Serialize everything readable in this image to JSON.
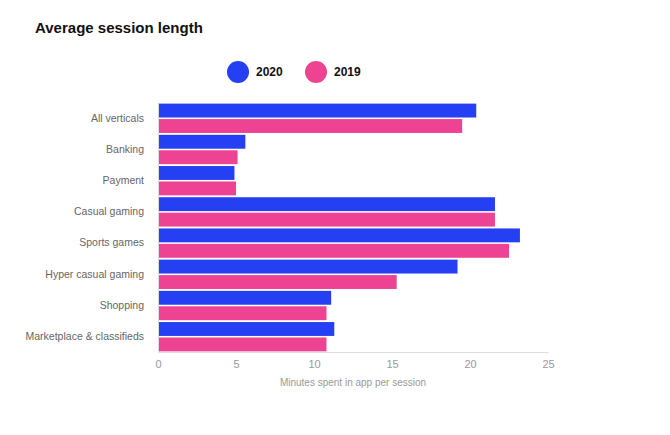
{
  "chart_data": {
    "type": "bar",
    "orientation": "horizontal",
    "title": "Average session length",
    "xlabel": "Minutes spent in app per session",
    "categories": [
      "All verticals",
      "Banking",
      "Payment",
      "Casual gaming",
      "Sports games",
      "Hyper casual gaming",
      "Shopping",
      "Marketplace & classifieds"
    ],
    "series": [
      {
        "name": "2020",
        "color": "#2440f2",
        "values": [
          20.4,
          5.6,
          4.9,
          21.6,
          23.2,
          19.2,
          11.1,
          11.3
        ]
      },
      {
        "name": "2019",
        "color": "#ee4392",
        "values": [
          19.5,
          5.1,
          5.0,
          21.6,
          22.5,
          15.3,
          10.8,
          10.8
        ]
      }
    ],
    "xlim": [
      0,
      25
    ],
    "xticks": [
      0,
      5,
      10,
      15,
      20,
      25
    ],
    "grid": false,
    "legend": "top"
  }
}
